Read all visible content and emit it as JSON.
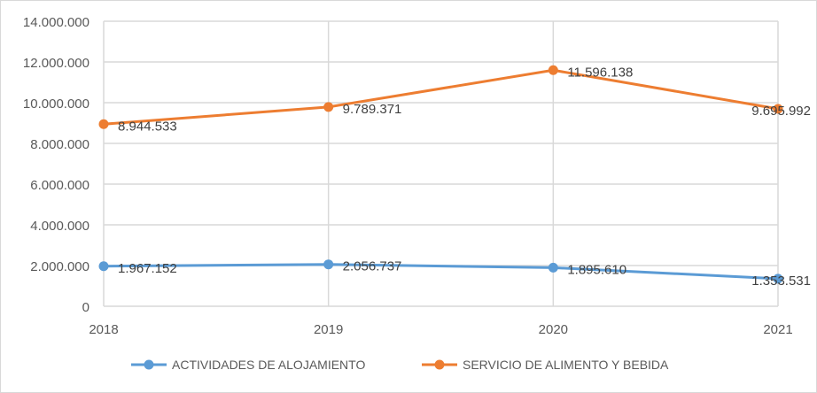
{
  "chart_data": {
    "type": "line",
    "title": "",
    "xlabel": "",
    "ylabel": "",
    "categories": [
      "2018",
      "2019",
      "2020",
      "2021"
    ],
    "ylim": [
      0,
      14000000
    ],
    "yticks": [
      0,
      2000000,
      4000000,
      6000000,
      8000000,
      10000000,
      12000000,
      14000000
    ],
    "ytick_labels": [
      "0",
      "2.000.000",
      "4.000.000",
      "6.000.000",
      "8.000.000",
      "10.000.000",
      "12.000.000",
      "14.000.000"
    ],
    "grid": true,
    "legend_position": "bottom",
    "series": [
      {
        "name": "ACTIVIDADES DE ALOJAMIENTO",
        "color": "#5b9bd5",
        "values": [
          1967152,
          2056737,
          1895610,
          1353531
        ],
        "labels": [
          "1.967.152",
          "2.056.737",
          "1.895.610",
          "1.353.531"
        ]
      },
      {
        "name": "SERVICIO DE ALIMENTO Y BEBIDA",
        "color": "#ed7d31",
        "values": [
          8944533,
          9789371,
          11596138,
          9695992
        ],
        "labels": [
          "8.944.533",
          "9.789.371",
          "11.596.138",
          "9.695.992"
        ]
      }
    ]
  }
}
